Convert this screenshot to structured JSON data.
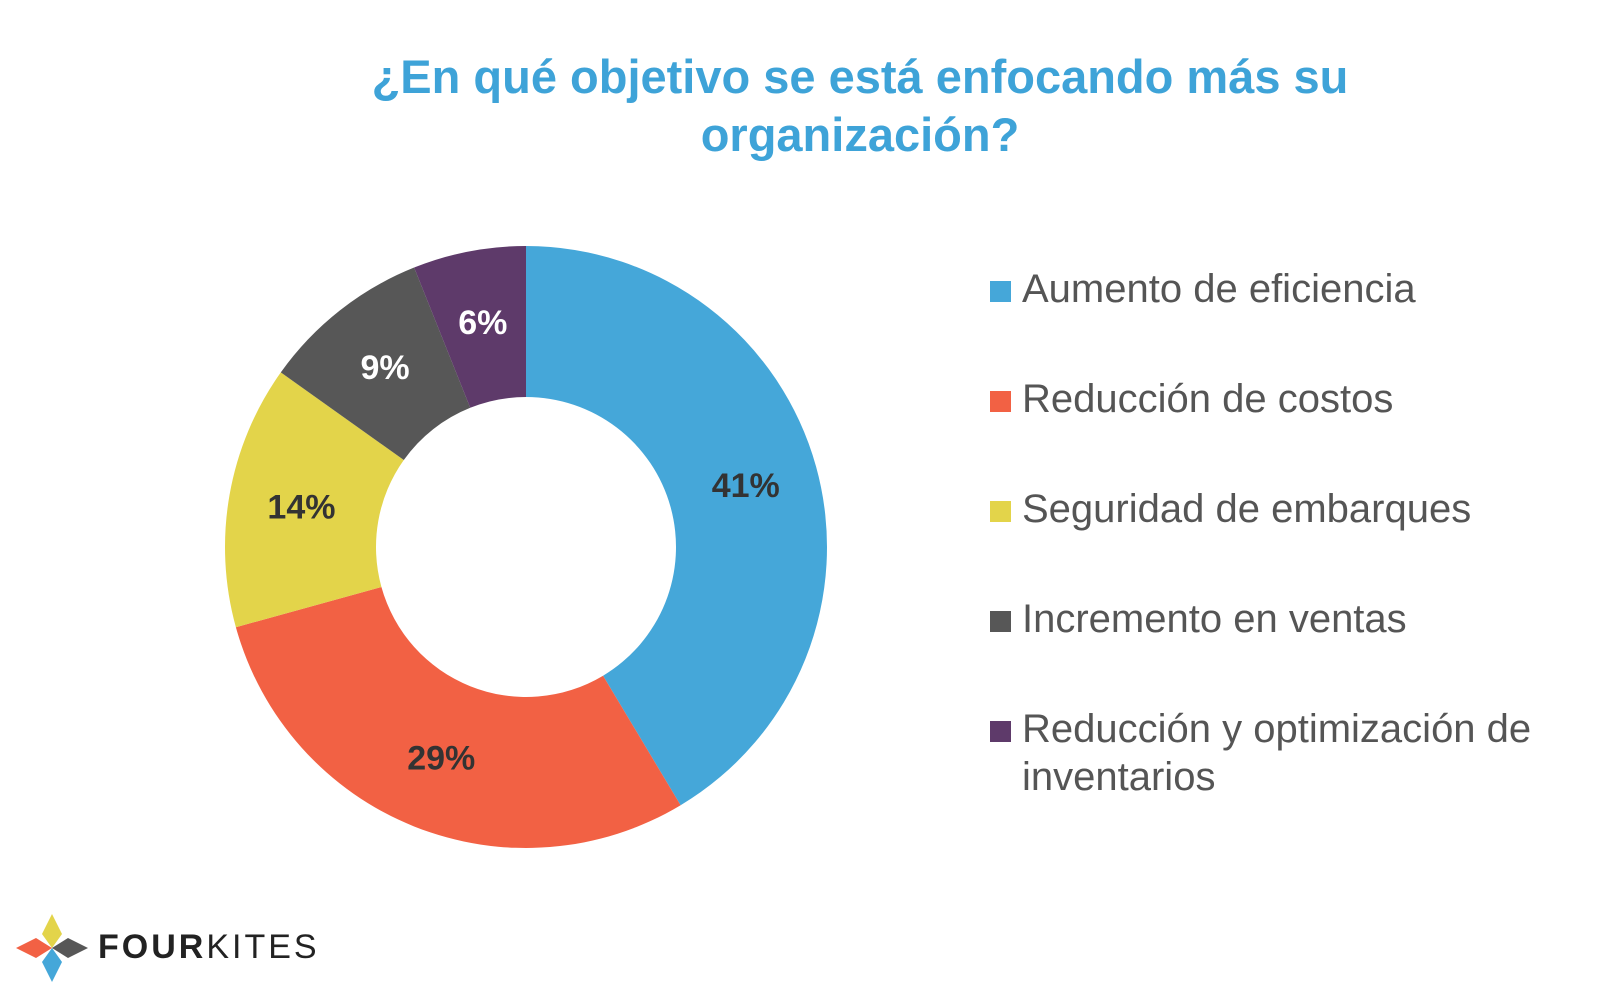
{
  "chart_data": {
    "type": "pie",
    "variant": "donut",
    "title": "¿En qué objetivo se está enfocando más su organización?",
    "categories": [
      "Aumento de eficiencia",
      "Reducción de costos",
      "Seguridad de embarques",
      "Incremento en ventas",
      "Reducción y optimización de inventarios"
    ],
    "values": [
      41,
      29,
      14,
      9,
      6
    ],
    "data_labels": [
      "41%",
      "29%",
      "14%",
      "9%",
      "6%"
    ],
    "colors": [
      "#45a7d9",
      "#f26144",
      "#e3d44a",
      "#575757",
      "#5e3a6a"
    ],
    "label_colors": [
      "#333333",
      "#333333",
      "#333333",
      "#ffffff",
      "#ffffff"
    ],
    "legend_position": "right"
  },
  "logo": {
    "bold": "FOUR",
    "light": "KITES",
    "colors": [
      "#e3d44a",
      "#45a7d9",
      "#f26144",
      "#575757"
    ]
  }
}
